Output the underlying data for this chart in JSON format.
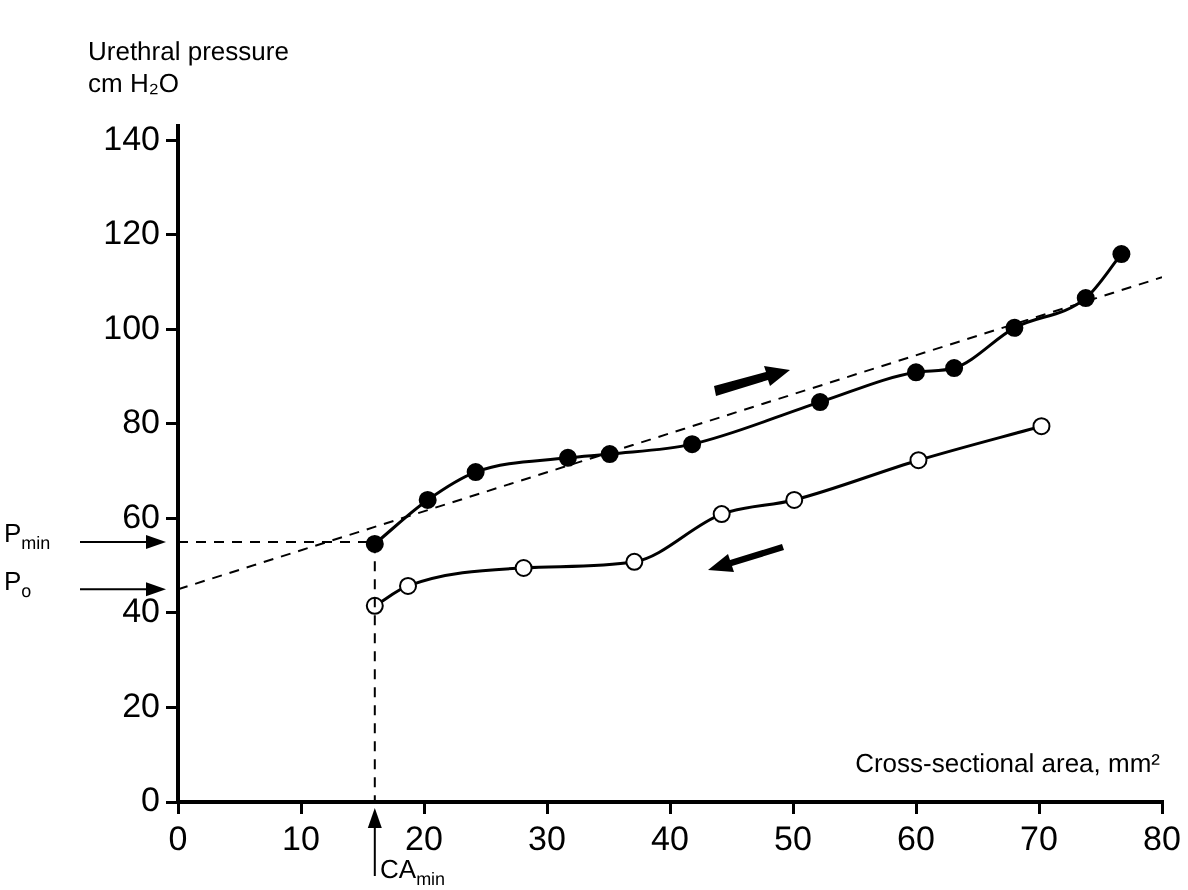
{
  "chart_data": {
    "type": "line",
    "ylabel": "Urethral pressure\ncm H₂O",
    "xlabel": "Cross-sectional area, mm²",
    "xlim": [
      0,
      80
    ],
    "xticks": [
      0,
      10,
      20,
      30,
      40,
      50,
      60,
      70,
      80
    ],
    "ylim": [
      0,
      143
    ],
    "yticks": [
      0,
      20,
      40,
      60,
      80,
      100,
      120,
      140
    ],
    "grid": false,
    "legend": false,
    "marker": "circle",
    "line_style": "solid",
    "series": [
      {
        "color": "#000000",
        "x": [
          16,
          20.3,
          24.2,
          31.7,
          35.1,
          41.8,
          52.2,
          60,
          63.1,
          68,
          73.8,
          76.7
        ],
        "values": [
          54.6,
          63.9,
          69.8,
          72.8,
          73.6,
          75.7,
          84.6,
          90.9,
          91.8,
          100.3,
          106.6,
          115.9
        ]
      },
      {
        "color": "#000000",
        "x": [
          16,
          18.7,
          28.1,
          37.1,
          44.2,
          50.1,
          60.2,
          70.2
        ],
        "values": [
          41.5,
          45.7,
          49.5,
          50.8,
          60.9,
          63.9,
          72.3,
          79.5
        ]
      },
      {
        "type": "line",
        "color": "#000000",
        "marker": "none",
        "line_style": "dashed",
        "x": [
          0,
          80
        ],
        "values": [
          45,
          111
        ]
      }
    ],
    "annotations": [
      "P$_{min}$",
      "P$_{o}$",
      "CA$_{min}$"
    ]
  }
}
